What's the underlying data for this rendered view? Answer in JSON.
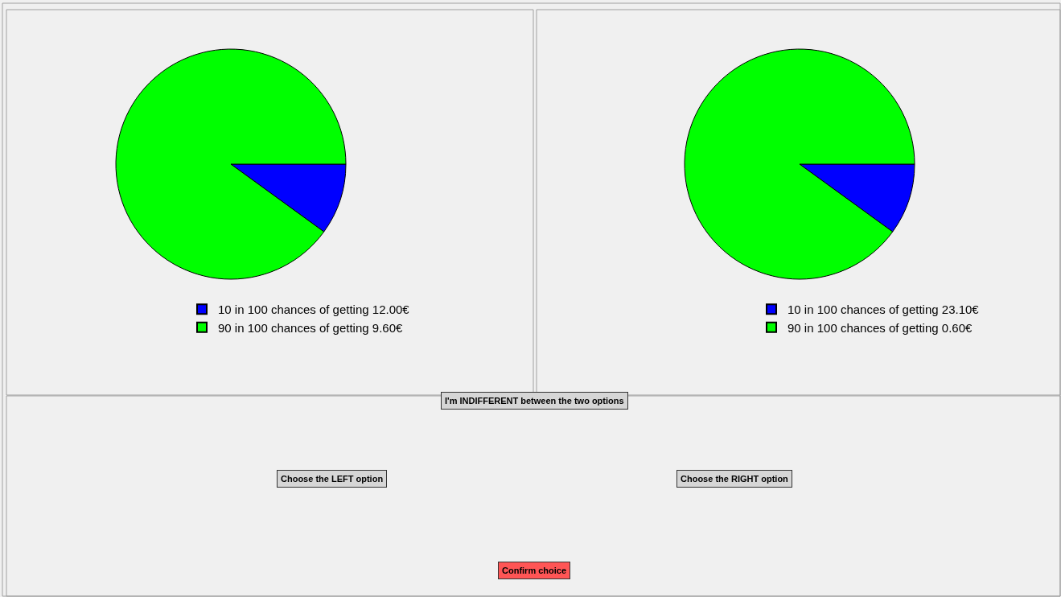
{
  "chart_data": [
    {
      "type": "pie",
      "categories": [
        "10 in 100 chances of getting 12.00€",
        "90 in 100 chances of getting 9.60€"
      ],
      "values": [
        10,
        90
      ],
      "colors": [
        "#0000ff",
        "#00ff00"
      ],
      "legend": "bottom"
    },
    {
      "type": "pie",
      "categories": [
        "10 in 100 chances of getting 23.10€",
        "90 in 100 chances of getting 0.60€"
      ],
      "values": [
        10,
        90
      ],
      "colors": [
        "#0000ff",
        "#00ff00"
      ],
      "legend": "bottom"
    },
    {
      "type": "other",
      "annotations": [
        "I'm INDIFFERENT between the two options",
        "Choose the LEFT option",
        "Choose the RIGHT option",
        "Confirm choice"
      ]
    }
  ]
}
